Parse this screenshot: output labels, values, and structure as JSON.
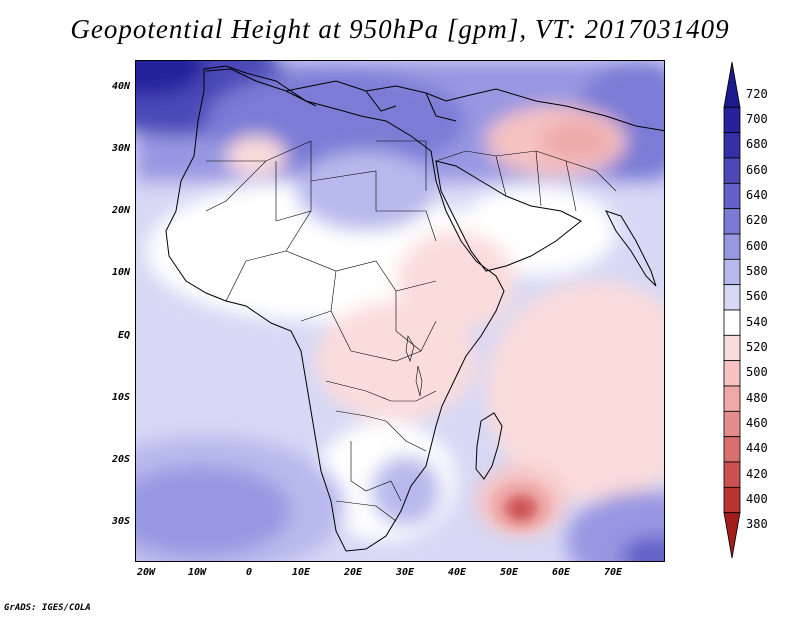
{
  "title": "Geopotential Height at 950hPa [gpm], VT: 2017031409",
  "credit": "GrADS: IGES/COLA",
  "y_axis": [
    "40N",
    "30N",
    "20N",
    "10N",
    "EQ",
    "10S",
    "20S",
    "30S"
  ],
  "x_axis": [
    "20W",
    "10W",
    "0",
    "10E",
    "20E",
    "30E",
    "40E",
    "50E",
    "60E",
    "70E"
  ],
  "colorbar": {
    "labels": [
      "720",
      "700",
      "680",
      "660",
      "640",
      "620",
      "600",
      "580",
      "560",
      "540",
      "520",
      "500",
      "480",
      "460",
      "440",
      "420",
      "400",
      "380"
    ],
    "colors": [
      "#1c1a8c",
      "#27229c",
      "#3530a8",
      "#4c48b8",
      "#6360c8",
      "#7b7bd6",
      "#9897e2",
      "#b7b9ec",
      "#d6d8f5",
      "#ffffff",
      "#fbdcdc",
      "#f6c2c2",
      "#eea8a8",
      "#e48c8c",
      "#d96e6e",
      "#cc5050",
      "#ba3232",
      "#a31c1c"
    ]
  },
  "map": {
    "ocean_color": "#d6d8f5",
    "land_color": "#ffffff"
  }
}
